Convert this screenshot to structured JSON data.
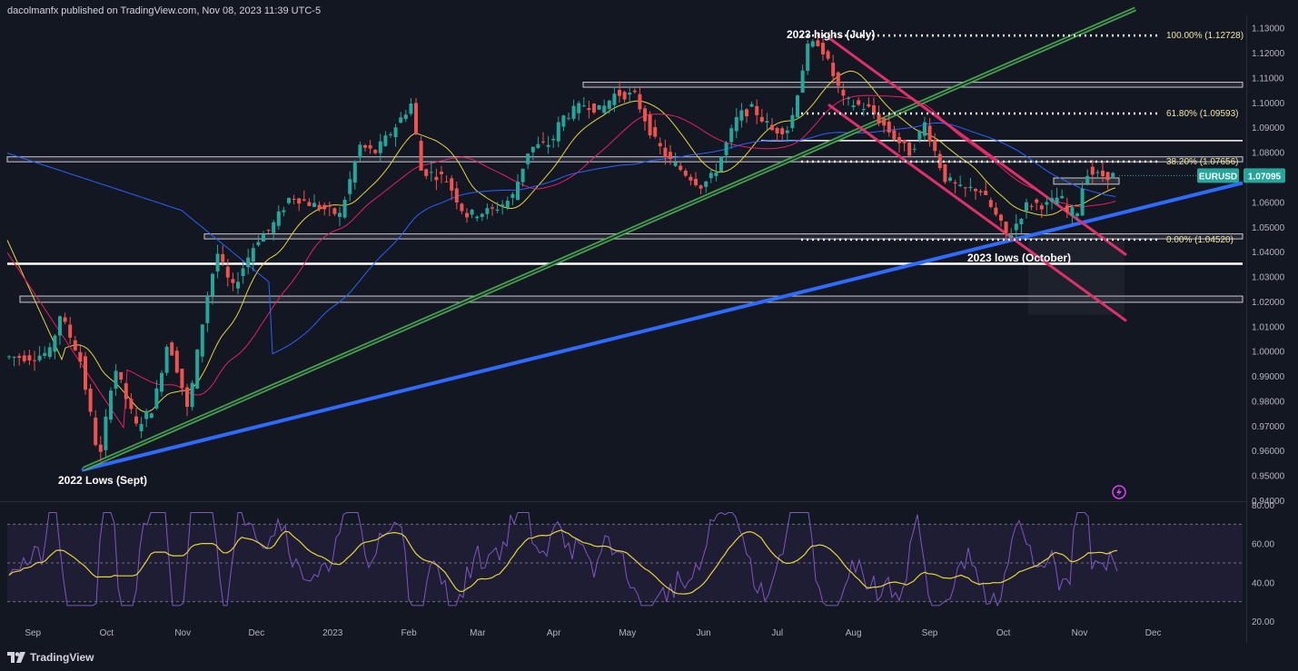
{
  "header": {
    "publisher": "dacolmanfx published on TradingView.com, Nov 08, 2023 11:39 UTC-5"
  },
  "footer": {
    "brand": "TradingView"
  },
  "colors": {
    "background": "#131722",
    "up": "#26a69a",
    "down": "#ef5350",
    "ma50": "#e5d43b",
    "ma100": "#e91e63",
    "ma200": "#2962ff",
    "trend_blue": "#2f6bff",
    "channel": "#e0306c",
    "green_channel": "#4caf50",
    "rsi": "#7e57c2",
    "rsi_ma": "#e5d43b"
  },
  "chart_data": [
    {
      "type": "candlestick",
      "symbol": "EURUSD",
      "last_price": "1.07095",
      "ylim": [
        0.94,
        1.135
      ],
      "y_ticks": [
        "1.13000",
        "1.12000",
        "1.11000",
        "1.10000",
        "1.09000",
        "1.08000",
        "1.07000",
        "1.06000",
        "1.05000",
        "1.04000",
        "1.03000",
        "1.02000",
        "1.01000",
        "1.00000",
        "0.99000",
        "0.98000",
        "0.97000",
        "0.96000",
        "0.95000",
        "0.94000"
      ],
      "x_ticks": [
        "Sep",
        "Oct",
        "Nov",
        "Dec",
        "2023",
        "Feb",
        "Mar",
        "Apr",
        "May",
        "Jun",
        "Jul",
        "Aug",
        "Sep",
        "Oct",
        "Nov",
        "Dec"
      ],
      "price_path": [
        [
          "2022-09-01",
          0.998
        ],
        [
          "2022-09-08",
          1.0
        ],
        [
          "2022-09-12",
          1.015
        ],
        [
          "2022-09-20",
          0.998
        ],
        [
          "2022-09-27",
          0.961
        ],
        [
          "2022-09-28",
          0.955
        ],
        [
          "2022-10-04",
          0.995
        ],
        [
          "2022-10-13",
          0.97
        ],
        [
          "2022-10-20",
          0.978
        ],
        [
          "2022-10-26",
          1.005
        ],
        [
          "2022-10-31",
          0.989
        ],
        [
          "2022-11-03",
          0.976
        ],
        [
          "2022-11-10",
          1.018
        ],
        [
          "2022-11-15",
          1.04
        ],
        [
          "2022-11-21",
          1.025
        ],
        [
          "2022-12-01",
          1.045
        ],
        [
          "2022-12-07",
          1.05
        ],
        [
          "2022-12-15",
          1.063
        ],
        [
          "2022-12-22",
          1.06
        ],
        [
          "2023-01-04",
          1.055
        ],
        [
          "2023-01-12",
          1.083
        ],
        [
          "2023-01-18",
          1.08
        ],
        [
          "2023-01-26",
          1.09
        ],
        [
          "2023-02-02",
          1.1
        ],
        [
          "2023-02-06",
          1.073
        ],
        [
          "2023-02-16",
          1.07
        ],
        [
          "2023-02-24",
          1.055
        ],
        [
          "2023-03-07",
          1.057
        ],
        [
          "2023-03-15",
          1.062
        ],
        [
          "2023-03-22",
          1.082
        ],
        [
          "2023-03-31",
          1.084
        ],
        [
          "2023-04-04",
          1.094
        ],
        [
          "2023-04-14",
          1.1
        ],
        [
          "2023-04-20",
          1.097
        ],
        [
          "2023-04-26",
          1.104
        ],
        [
          "2023-05-04",
          1.103
        ],
        [
          "2023-05-12",
          1.085
        ],
        [
          "2023-05-18",
          1.077
        ],
        [
          "2023-05-31",
          1.067
        ],
        [
          "2023-06-05",
          1.071
        ],
        [
          "2023-06-15",
          1.095
        ],
        [
          "2023-06-21",
          1.098
        ],
        [
          "2023-06-29",
          1.089
        ],
        [
          "2023-07-06",
          1.09
        ],
        [
          "2023-07-13",
          1.122
        ],
        [
          "2023-07-18",
          1.125
        ],
        [
          "2023-07-28",
          1.101
        ],
        [
          "2023-08-07",
          1.098
        ],
        [
          "2023-08-17",
          1.087
        ],
        [
          "2023-08-24",
          1.08
        ],
        [
          "2023-08-30",
          1.092
        ],
        [
          "2023-09-07",
          1.07
        ],
        [
          "2023-09-14",
          1.065
        ],
        [
          "2023-09-21",
          1.066
        ],
        [
          "2023-09-26",
          1.058
        ],
        [
          "2023-10-03",
          1.046
        ],
        [
          "2023-10-11",
          1.06
        ],
        [
          "2023-10-19",
          1.059
        ],
        [
          "2023-10-24",
          1.063
        ],
        [
          "2023-10-27",
          1.056
        ],
        [
          "2023-11-01",
          1.057
        ],
        [
          "2023-11-03",
          1.073
        ],
        [
          "2023-11-06",
          1.072
        ],
        [
          "2023-11-08",
          1.071
        ]
      ],
      "fibonacci": [
        {
          "label": "100.00% (1.12728)",
          "value": 1.12728
        },
        {
          "label": "61.80% (1.09593)",
          "value": 1.09593
        },
        {
          "label": "38.20% (1.07656)",
          "value": 1.07656
        },
        {
          "label": "0.00% (1.04520)",
          "value": 1.0452
        }
      ],
      "annotations": [
        "2023 highs (July)",
        "2023 lows (October)",
        "2022 Lows (Sept)"
      ]
    },
    {
      "type": "line",
      "name": "RSI",
      "ylim": [
        20,
        80
      ],
      "y_ticks": [
        "80.00",
        "60.00",
        "40.00",
        "20.00"
      ],
      "bands": [
        70,
        50,
        30
      ]
    }
  ]
}
